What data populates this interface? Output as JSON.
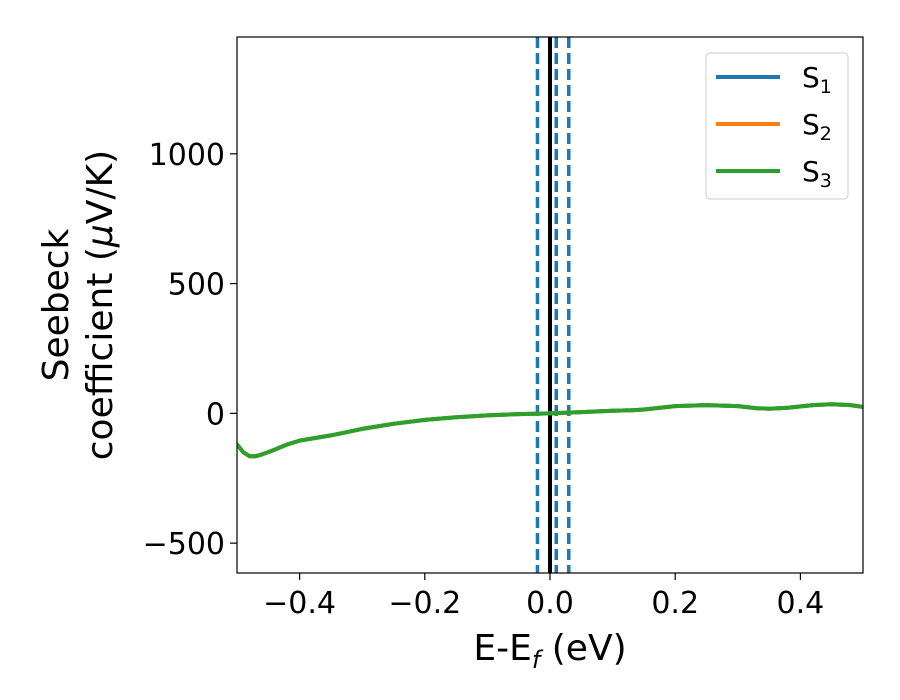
{
  "chart_data": {
    "type": "line",
    "xlabel": {
      "main": "E-E",
      "sub": "f",
      "unit": " (eV)"
    },
    "ylabel": {
      "line1": "Seebeck",
      "line2_prefix": "coefficient  (",
      "mu": "μ",
      "line2_suffix": "V/K)"
    },
    "xlim": [
      -0.5,
      0.5
    ],
    "ylim": [
      -615,
      1450
    ],
    "xticks": [
      -0.4,
      -0.2,
      0.0,
      0.2,
      0.4
    ],
    "xtick_labels": [
      "−0.4",
      "−0.2",
      "0.0",
      "0.2",
      "0.4"
    ],
    "yticks": [
      -500,
      0,
      500,
      1000
    ],
    "ytick_labels": [
      "−500",
      "0",
      "500",
      "1000"
    ],
    "grid": false,
    "legend_position": "top-right",
    "vertical_lines": [
      {
        "x": 0.0,
        "style": "solid",
        "color": "#000000"
      },
      {
        "x": -0.02,
        "style": "dashed",
        "color": "#1f77b4"
      },
      {
        "x": 0.01,
        "style": "dashed",
        "color": "#1f77b4"
      },
      {
        "x": 0.03,
        "style": "dashed",
        "color": "#1f77b4"
      }
    ],
    "x": [
      -0.5,
      -0.49,
      -0.48,
      -0.47,
      -0.46,
      -0.44,
      -0.42,
      -0.4,
      -0.35,
      -0.3,
      -0.25,
      -0.2,
      -0.15,
      -0.1,
      -0.05,
      0.0,
      0.05,
      0.1,
      0.13,
      0.15,
      0.2,
      0.25,
      0.3,
      0.33,
      0.35,
      0.38,
      0.42,
      0.45,
      0.48,
      0.5
    ],
    "series": [
      {
        "name": "S",
        "sub": "1",
        "color": "#1f77b4",
        "values": [
          -120,
          -150,
          -165,
          -165,
          -158,
          -140,
          -120,
          -105,
          -85,
          -60,
          -40,
          -25,
          -15,
          -8,
          -3,
          0,
          5,
          10,
          12,
          15,
          28,
          32,
          28,
          20,
          18,
          22,
          32,
          35,
          32,
          25
        ]
      },
      {
        "name": "S",
        "sub": "2",
        "color": "#ff7f0e",
        "values": [
          -120,
          -150,
          -165,
          -165,
          -158,
          -140,
          -120,
          -105,
          -85,
          -60,
          -40,
          -25,
          -15,
          -8,
          -3,
          0,
          5,
          10,
          12,
          15,
          28,
          32,
          28,
          20,
          18,
          22,
          32,
          35,
          32,
          25
        ]
      },
      {
        "name": "S",
        "sub": "3",
        "color": "#2ca02c",
        "values": [
          -120,
          -150,
          -165,
          -165,
          -158,
          -140,
          -120,
          -105,
          -85,
          -60,
          -40,
          -25,
          -15,
          -8,
          -3,
          0,
          5,
          10,
          12,
          15,
          28,
          32,
          28,
          20,
          18,
          22,
          32,
          35,
          32,
          25
        ]
      }
    ]
  }
}
